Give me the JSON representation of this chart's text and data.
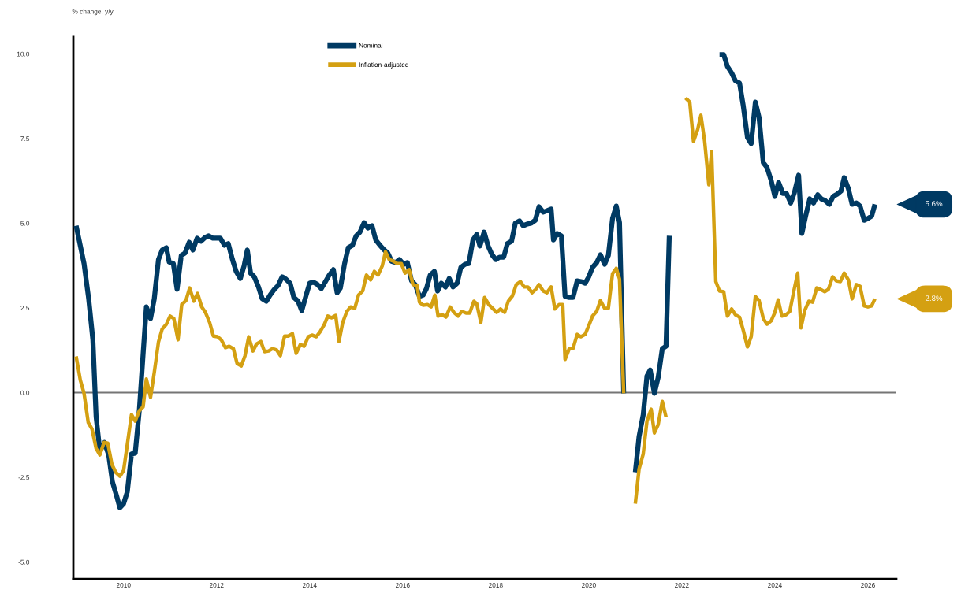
{
  "chart_data": {
    "type": "line",
    "title": "% change, y/y",
    "xlim": [
      2008.92,
      2026.61
    ],
    "xticks": [
      2010,
      2012,
      2014,
      2016,
      2018,
      2020,
      2022,
      2024,
      2026
    ],
    "ylim": [
      -5.5,
      10.5
    ],
    "yticks": [
      {
        "value": -5,
        "label": "-5.0"
      },
      {
        "value": -2.5,
        "label": "-2.5"
      },
      {
        "value": 0,
        "label": "0.0"
      },
      {
        "value": 2.5,
        "label": "2.5"
      },
      {
        "value": 5,
        "label": "5.0"
      },
      {
        "value": 7.5,
        "label": "7.5"
      },
      {
        "value": 10,
        "label": "10.0"
      }
    ],
    "grid": false,
    "legend": "top",
    "marker": "none",
    "line_style": "solid",
    "ref_lines": [
      {
        "axis": "y",
        "value": 0,
        "label": null,
        "color": "#757575"
      }
    ],
    "series": [
      {
        "name": "Nominal",
        "color": "#003a63",
        "x": [
          2008.98,
          2009.15,
          2009.25,
          2009.34,
          2009.41,
          2009.49,
          2009.59,
          2009.68,
          2009.76,
          2009.85,
          2009.92,
          2010.0,
          2010.08,
          2010.17,
          2010.25,
          2010.34,
          2010.42,
          2010.49,
          2010.58,
          2010.66,
          2010.75,
          2010.83,
          2010.92,
          2010.98,
          2011.07,
          2011.15,
          2011.24,
          2011.32,
          2011.41,
          2011.49,
          2011.58,
          2011.66,
          2011.75,
          2011.83,
          2011.92,
          2012.08,
          2012.17,
          2012.25,
          2012.34,
          2012.42,
          2012.51,
          2012.59,
          2012.66,
          2012.73,
          2012.81,
          2012.9,
          2012.98,
          2013.07,
          2013.15,
          2013.24,
          2013.32,
          2013.41,
          2013.49,
          2013.58,
          2013.66,
          2013.75,
          2013.83,
          2013.92,
          2014.0,
          2014.08,
          2014.17,
          2014.25,
          2014.34,
          2014.42,
          2014.51,
          2014.59,
          2014.66,
          2014.75,
          2014.83,
          2014.92,
          2015.0,
          2015.08,
          2015.17,
          2015.25,
          2015.34,
          2015.42,
          2015.51,
          2015.59,
          2015.68,
          2015.76,
          2015.85,
          2015.93,
          2016.02,
          2016.1,
          2016.19,
          2016.27,
          2016.36,
          2016.44,
          2016.51,
          2016.59,
          2016.68,
          2016.75,
          2016.83,
          2016.92,
          2017.0,
          2017.08,
          2017.17,
          2017.25,
          2017.34,
          2017.42,
          2017.51,
          2017.59,
          2017.66,
          2017.75,
          2017.83,
          2017.92,
          2018.0,
          2018.08,
          2018.17,
          2018.25,
          2018.34,
          2018.42,
          2018.51,
          2018.59,
          2018.68,
          2018.76,
          2018.85,
          2018.93,
          2019.02,
          2019.1,
          2019.19,
          2019.24,
          2019.32,
          2019.41,
          2019.49,
          2019.58,
          2019.66,
          2019.75,
          2019.83,
          2019.92,
          2020.0,
          2020.08,
          2020.17,
          2020.25,
          2020.34,
          2020.42,
          2020.51,
          2020.59,
          2020.66,
          2020.75,
          2020.81,
          2020.92,
          2021.0,
          2021.08,
          2021.17,
          2021.25,
          2021.32,
          2021.41,
          2021.49,
          2021.58,
          2021.66,
          2021.73,
          2021.76,
          2022.2,
          2022.69,
          2022.81,
          2022.9,
          2022.98,
          2023.07,
          2023.15,
          2023.24,
          2023.32,
          2023.41,
          2023.49,
          2023.58,
          2023.66,
          2023.75,
          2023.83,
          2023.92,
          2024.0,
          2024.08,
          2024.17,
          2024.25,
          2024.34,
          2024.42,
          2024.51,
          2024.58,
          2024.66,
          2024.75,
          2024.83,
          2024.92,
          2025.0,
          2025.08,
          2025.17,
          2025.25,
          2025.34,
          2025.42,
          2025.49,
          2025.58,
          2025.66,
          2025.75,
          2025.83,
          2025.92,
          2026.0,
          2026.08,
          2026.15
        ],
        "values": [
          4.93,
          3.81,
          2.77,
          1.56,
          -0.72,
          -1.72,
          -1.47,
          -1.84,
          -2.63,
          -3.05,
          -3.4,
          -3.28,
          -2.93,
          -1.81,
          -1.79,
          -0.49,
          1.14,
          2.53,
          2.19,
          2.77,
          3.93,
          4.21,
          4.28,
          3.86,
          3.81,
          3.05,
          4.05,
          4.12,
          4.44,
          4.21,
          4.56,
          4.47,
          4.58,
          4.63,
          4.56,
          4.56,
          4.35,
          4.4,
          3.93,
          3.58,
          3.37,
          3.74,
          4.21,
          3.53,
          3.42,
          3.12,
          2.77,
          2.7,
          2.88,
          3.05,
          3.16,
          3.42,
          3.35,
          3.23,
          2.81,
          2.7,
          2.42,
          2.86,
          3.23,
          3.26,
          3.19,
          3.07,
          3.28,
          3.47,
          3.63,
          2.95,
          3.09,
          3.81,
          4.28,
          4.35,
          4.63,
          4.74,
          5.02,
          4.86,
          4.93,
          4.51,
          4.35,
          4.23,
          4.12,
          3.88,
          3.84,
          3.93,
          3.79,
          3.84,
          3.3,
          3.19,
          2.84,
          2.88,
          3.07,
          3.47,
          3.58,
          3.0,
          3.23,
          3.12,
          3.37,
          3.12,
          3.23,
          3.7,
          3.79,
          3.81,
          4.51,
          4.67,
          4.33,
          4.74,
          4.35,
          4.07,
          3.93,
          4.0,
          4.0,
          4.4,
          4.47,
          5.0,
          5.07,
          4.93,
          4.98,
          5.0,
          5.09,
          5.49,
          5.33,
          5.37,
          5.42,
          4.51,
          4.7,
          4.63,
          2.84,
          2.81,
          2.81,
          3.3,
          3.28,
          3.23,
          3.42,
          3.7,
          3.84,
          4.07,
          3.79,
          4.05,
          5.14,
          5.51,
          5.02,
          -0.02,
          null,
          null,
          -2.35,
          -1.3,
          -0.65,
          0.49,
          0.67,
          -0.02,
          0.44,
          1.3,
          1.37,
          4.63,
          null,
          null,
          null,
          9.98,
          9.98,
          9.63,
          9.44,
          9.21,
          9.14,
          8.47,
          7.53,
          7.35,
          8.58,
          8.12,
          6.79,
          6.65,
          6.26,
          5.79,
          6.21,
          5.88,
          5.88,
          5.6,
          5.91,
          6.42,
          4.7,
          5.21,
          5.72,
          5.6,
          5.84,
          5.72,
          5.67,
          5.56,
          5.79,
          5.86,
          5.95,
          6.35,
          6.02,
          5.56,
          5.6,
          5.51,
          5.09,
          5.14,
          5.21,
          5.56
        ]
      },
      {
        "name": "Inflation-adjusted",
        "color": "#d4a012",
        "x": [
          2008.98,
          2009.07,
          2009.15,
          2009.24,
          2009.32,
          2009.41,
          2009.49,
          2009.58,
          2009.66,
          2009.75,
          2009.83,
          2009.92,
          2010.0,
          2010.08,
          2010.17,
          2010.25,
          2010.34,
          2010.42,
          2010.49,
          2010.58,
          2010.66,
          2010.75,
          2010.83,
          2010.92,
          2011.0,
          2011.08,
          2011.17,
          2011.25,
          2011.34,
          2011.42,
          2011.51,
          2011.59,
          2011.68,
          2011.76,
          2011.85,
          2011.93,
          2012.02,
          2012.1,
          2012.19,
          2012.27,
          2012.36,
          2012.44,
          2012.53,
          2012.61,
          2012.69,
          2012.78,
          2012.86,
          2012.95,
          2013.03,
          2013.12,
          2013.2,
          2013.29,
          2013.37,
          2013.46,
          2013.54,
          2013.63,
          2013.71,
          2013.8,
          2013.88,
          2013.97,
          2014.05,
          2014.14,
          2014.22,
          2014.31,
          2014.39,
          2014.47,
          2014.56,
          2014.63,
          2014.71,
          2014.8,
          2014.88,
          2014.97,
          2015.05,
          2015.14,
          2015.22,
          2015.31,
          2015.39,
          2015.47,
          2015.56,
          2015.63,
          2015.71,
          2015.8,
          2015.88,
          2015.97,
          2016.05,
          2016.14,
          2016.22,
          2016.31,
          2016.36,
          2016.44,
          2016.53,
          2016.61,
          2016.69,
          2016.76,
          2016.85,
          2016.93,
          2017.02,
          2017.1,
          2017.19,
          2017.27,
          2017.36,
          2017.44,
          2017.53,
          2017.59,
          2017.68,
          2017.76,
          2017.85,
          2017.93,
          2018.02,
          2018.1,
          2018.19,
          2018.27,
          2018.36,
          2018.44,
          2018.53,
          2018.61,
          2018.69,
          2018.78,
          2018.86,
          2018.93,
          2019.02,
          2019.1,
          2019.19,
          2019.27,
          2019.36,
          2019.44,
          2019.49,
          2019.58,
          2019.66,
          2019.75,
          2019.83,
          2019.92,
          2020.0,
          2020.08,
          2020.17,
          2020.25,
          2020.34,
          2020.42,
          2020.51,
          2020.59,
          2020.66,
          2020.75,
          2020.81,
          2020.92,
          2021.0,
          2021.08,
          2021.17,
          2021.25,
          2021.34,
          2021.41,
          2021.49,
          2021.58,
          2021.66,
          2021.71,
          2021.8,
          2021.98,
          2022.08,
          2022.17,
          2022.25,
          2022.34,
          2022.41,
          2022.49,
          2022.58,
          2022.64,
          2022.73,
          2022.81,
          2022.9,
          2022.98,
          2023.07,
          2023.15,
          2023.24,
          2023.32,
          2023.41,
          2023.49,
          2023.58,
          2023.66,
          2023.75,
          2023.83,
          2023.92,
          2024.0,
          2024.07,
          2024.15,
          2024.24,
          2024.32,
          2024.41,
          2024.49,
          2024.56,
          2024.64,
          2024.73,
          2024.81,
          2024.9,
          2024.98,
          2025.07,
          2025.15,
          2025.24,
          2025.32,
          2025.41,
          2025.49,
          2025.58,
          2025.66,
          2025.75,
          2025.83,
          2025.92,
          2026.0,
          2026.08,
          2026.15
        ],
        "values": [
          1.07,
          0.37,
          -0.02,
          -0.88,
          -1.07,
          -1.65,
          -1.84,
          -1.47,
          -1.49,
          -2.12,
          -2.35,
          -2.47,
          -2.3,
          -1.53,
          -0.65,
          -0.84,
          -0.53,
          -0.42,
          0.4,
          -0.14,
          0.6,
          1.49,
          1.88,
          2.02,
          2.26,
          2.19,
          1.56,
          2.6,
          2.72,
          3.09,
          2.7,
          2.93,
          2.53,
          2.37,
          2.07,
          1.67,
          1.65,
          1.56,
          1.33,
          1.37,
          1.3,
          0.86,
          0.79,
          1.09,
          1.65,
          1.23,
          1.44,
          1.51,
          1.21,
          1.23,
          1.3,
          1.26,
          1.09,
          1.67,
          1.67,
          1.74,
          1.16,
          1.42,
          1.37,
          1.65,
          1.7,
          1.65,
          1.79,
          2.0,
          2.26,
          2.21,
          2.28,
          1.51,
          2.07,
          2.4,
          2.53,
          2.49,
          2.88,
          3.0,
          3.47,
          3.33,
          3.58,
          3.47,
          3.74,
          4.16,
          3.93,
          3.88,
          3.81,
          3.81,
          3.53,
          3.63,
          3.19,
          3.16,
          2.67,
          2.58,
          2.6,
          2.53,
          2.88,
          2.26,
          2.3,
          2.23,
          2.53,
          2.37,
          2.26,
          2.4,
          2.35,
          2.35,
          2.7,
          2.63,
          2.07,
          2.81,
          2.6,
          2.49,
          2.37,
          2.47,
          2.37,
          2.7,
          2.86,
          3.19,
          3.28,
          3.12,
          3.12,
          2.95,
          3.05,
          3.19,
          3.0,
          2.95,
          3.12,
          2.47,
          2.6,
          2.6,
          0.98,
          1.3,
          1.3,
          1.72,
          1.65,
          1.72,
          1.98,
          2.26,
          2.4,
          2.72,
          2.49,
          2.49,
          3.51,
          3.67,
          3.35,
          -0.02,
          null,
          null,
          -3.28,
          -2.26,
          -1.81,
          -0.84,
          -0.49,
          -1.19,
          -0.95,
          -0.26,
          -0.72,
          null,
          null,
          null,
          8.7,
          8.58,
          7.42,
          7.77,
          8.19,
          7.42,
          6.14,
          7.12,
          3.28,
          3.0,
          2.98,
          2.26,
          2.47,
          2.3,
          2.23,
          1.84,
          1.35,
          1.65,
          2.84,
          2.72,
          2.19,
          2.02,
          2.12,
          2.37,
          2.74,
          2.26,
          2.3,
          2.4,
          3.02,
          3.53,
          1.91,
          2.42,
          2.7,
          2.67,
          3.09,
          3.05,
          2.98,
          3.05,
          3.42,
          3.3,
          3.28,
          3.53,
          3.33,
          2.77,
          3.19,
          3.14,
          2.56,
          2.53,
          2.56,
          2.77
        ]
      }
    ],
    "annotations": [
      "5.6%",
      "2.8%"
    ]
  }
}
